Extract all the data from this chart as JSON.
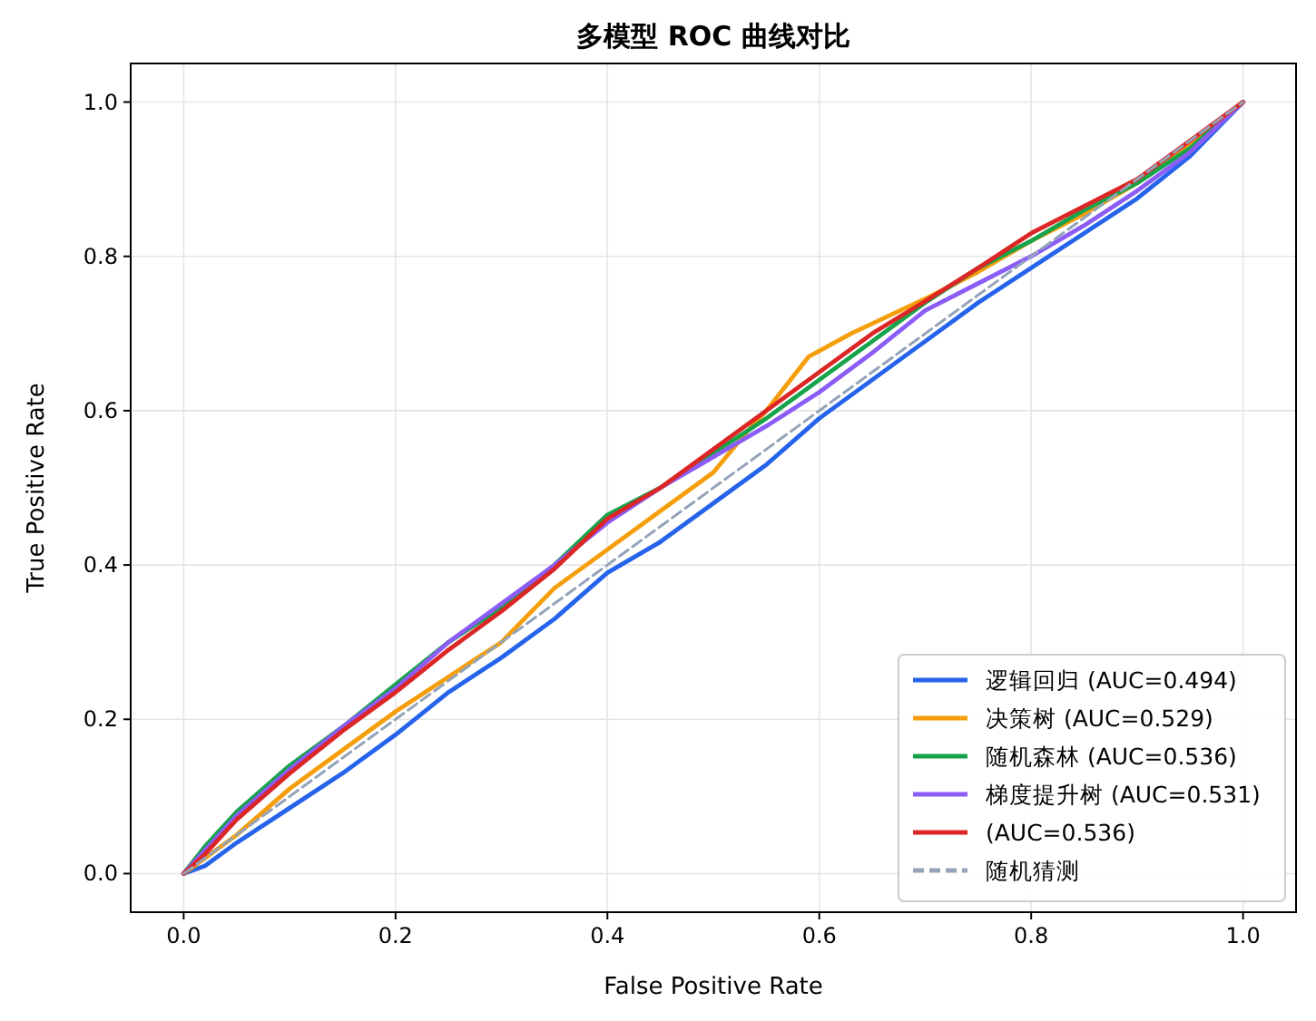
{
  "chart_data": {
    "type": "line",
    "title": "多模型 ROC 曲线对比",
    "xlabel": "False Positive Rate",
    "ylabel": "True Positive Rate",
    "xlim": [
      -0.05,
      1.05
    ],
    "ylim": [
      -0.05,
      1.05
    ],
    "xticks": [
      {
        "value": 0,
        "label": "0.0"
      },
      0.2,
      0.4,
      0.6,
      0.8,
      {
        "value": 1,
        "label": "1.0"
      }
    ],
    "yticks": [
      {
        "value": 0,
        "label": "0.0"
      },
      0.2,
      0.4,
      0.6,
      0.8,
      {
        "value": 1,
        "label": "1.0"
      }
    ],
    "grid": true,
    "legend": "bottom right",
    "series": [
      {
        "name": "逻辑回归 (AUC=0.494)",
        "color": "#2563eb",
        "x": [
          0,
          0.02,
          0.05,
          0.1,
          0.15,
          0.2,
          0.25,
          0.3,
          0.35,
          0.4,
          0.45,
          0.5,
          0.55,
          0.6,
          0.65,
          0.7,
          0.75,
          0.8,
          0.85,
          0.9,
          0.95,
          1
        ],
        "values": [
          0,
          0.01,
          0.04,
          0.085,
          0.13,
          0.18,
          0.235,
          0.28,
          0.33,
          0.39,
          0.43,
          0.48,
          0.53,
          0.59,
          0.64,
          0.69,
          0.74,
          0.785,
          0.83,
          0.875,
          0.93,
          1
        ]
      },
      {
        "name": "决策树 (AUC=0.529)",
        "color": "#f59e0b",
        "x": [
          0,
          0.02,
          0.05,
          0.1,
          0.15,
          0.2,
          0.25,
          0.3,
          0.35,
          0.4,
          0.45,
          0.5,
          0.53,
          0.55,
          0.59,
          0.63,
          0.7,
          0.75,
          0.8,
          0.85,
          0.9,
          0.95,
          1
        ],
        "values": [
          0,
          0.02,
          0.05,
          0.11,
          0.16,
          0.21,
          0.255,
          0.3,
          0.37,
          0.42,
          0.47,
          0.52,
          0.57,
          0.6,
          0.67,
          0.7,
          0.745,
          0.78,
          0.82,
          0.855,
          0.895,
          0.945,
          1
        ]
      },
      {
        "name": "随机森林 (AUC=0.536)",
        "color": "#16a34a",
        "x": [
          0,
          0.02,
          0.05,
          0.1,
          0.15,
          0.2,
          0.25,
          0.3,
          0.35,
          0.4,
          0.45,
          0.5,
          0.55,
          0.6,
          0.65,
          0.7,
          0.75,
          0.8,
          0.85,
          0.9,
          0.95,
          1
        ],
        "values": [
          0,
          0.035,
          0.08,
          0.14,
          0.19,
          0.245,
          0.3,
          0.345,
          0.4,
          0.465,
          0.5,
          0.545,
          0.59,
          0.64,
          0.69,
          0.74,
          0.785,
          0.82,
          0.86,
          0.895,
          0.94,
          1
        ]
      },
      {
        "name": "梯度提升树 (AUC=0.531)",
        "color": "#8b5cf6",
        "x": [
          0,
          0.02,
          0.05,
          0.1,
          0.15,
          0.2,
          0.25,
          0.3,
          0.35,
          0.4,
          0.45,
          0.5,
          0.55,
          0.6,
          0.65,
          0.7,
          0.75,
          0.8,
          0.85,
          0.9,
          0.95,
          1
        ],
        "values": [
          0,
          0.03,
          0.075,
          0.135,
          0.19,
          0.24,
          0.3,
          0.35,
          0.4,
          0.455,
          0.5,
          0.54,
          0.58,
          0.624,
          0.675,
          0.73,
          0.765,
          0.8,
          0.84,
          0.885,
          0.935,
          1
        ]
      },
      {
        "name": "(AUC=0.536)",
        "color": "#dc2626",
        "x": [
          0,
          0.02,
          0.05,
          0.1,
          0.15,
          0.2,
          0.25,
          0.3,
          0.35,
          0.4,
          0.45,
          0.5,
          0.55,
          0.6,
          0.65,
          0.7,
          0.75,
          0.8,
          0.85,
          0.9,
          0.95,
          1
        ],
        "values": [
          0,
          0.025,
          0.07,
          0.13,
          0.185,
          0.235,
          0.29,
          0.34,
          0.395,
          0.46,
          0.5,
          0.55,
          0.6,
          0.65,
          0.7,
          0.742,
          0.785,
          0.83,
          0.865,
          0.9,
          0.95,
          1
        ]
      },
      {
        "name": "随机猜测",
        "color": "#94a3b8",
        "line_style": "dashed",
        "x": [
          0,
          1
        ],
        "values": [
          0,
          1
        ]
      }
    ]
  }
}
